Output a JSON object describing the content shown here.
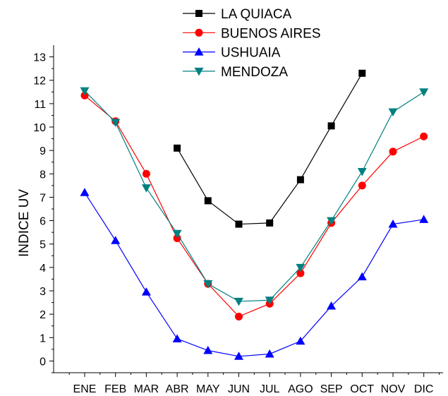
{
  "chart_data": {
    "type": "line",
    "title": "",
    "xlabel": "",
    "ylabel": "INDICE UV",
    "categories": [
      "ENE",
      "FEB",
      "MAR",
      "ABR",
      "MAY",
      "JUN",
      "JUL",
      "AGO",
      "SEP",
      "OCT",
      "NOV",
      "DIC"
    ],
    "ylim": [
      -0.5,
      13.5
    ],
    "yticks": [
      0,
      1,
      2,
      3,
      4,
      5,
      6,
      7,
      8,
      9,
      10,
      11,
      12,
      13
    ],
    "grid": false,
    "legend_position": "top-center",
    "series": [
      {
        "name": "LA QUIACA",
        "color": "#000000",
        "marker": "square",
        "values": [
          null,
          null,
          null,
          9.1,
          6.85,
          5.85,
          5.9,
          7.75,
          10.05,
          12.3,
          null,
          null
        ]
      },
      {
        "name": "BUENOS AIRES",
        "color": "#ff0000",
        "marker": "circle",
        "values": [
          11.35,
          10.25,
          8.0,
          5.25,
          3.3,
          1.9,
          2.45,
          3.75,
          5.9,
          7.5,
          8.95,
          9.6
        ]
      },
      {
        "name": "USHUAIA",
        "color": "#0000ff",
        "marker": "triangle-up",
        "values": [
          7.2,
          5.15,
          2.95,
          0.95,
          0.45,
          0.2,
          0.3,
          0.85,
          2.35,
          3.6,
          5.85,
          6.05
        ]
      },
      {
        "name": "MENDOZA",
        "color": "#008080",
        "marker": "triangle-down",
        "values": [
          11.55,
          10.2,
          7.4,
          5.45,
          3.3,
          2.55,
          2.6,
          4.0,
          6.0,
          8.1,
          10.65,
          11.5
        ]
      }
    ]
  }
}
